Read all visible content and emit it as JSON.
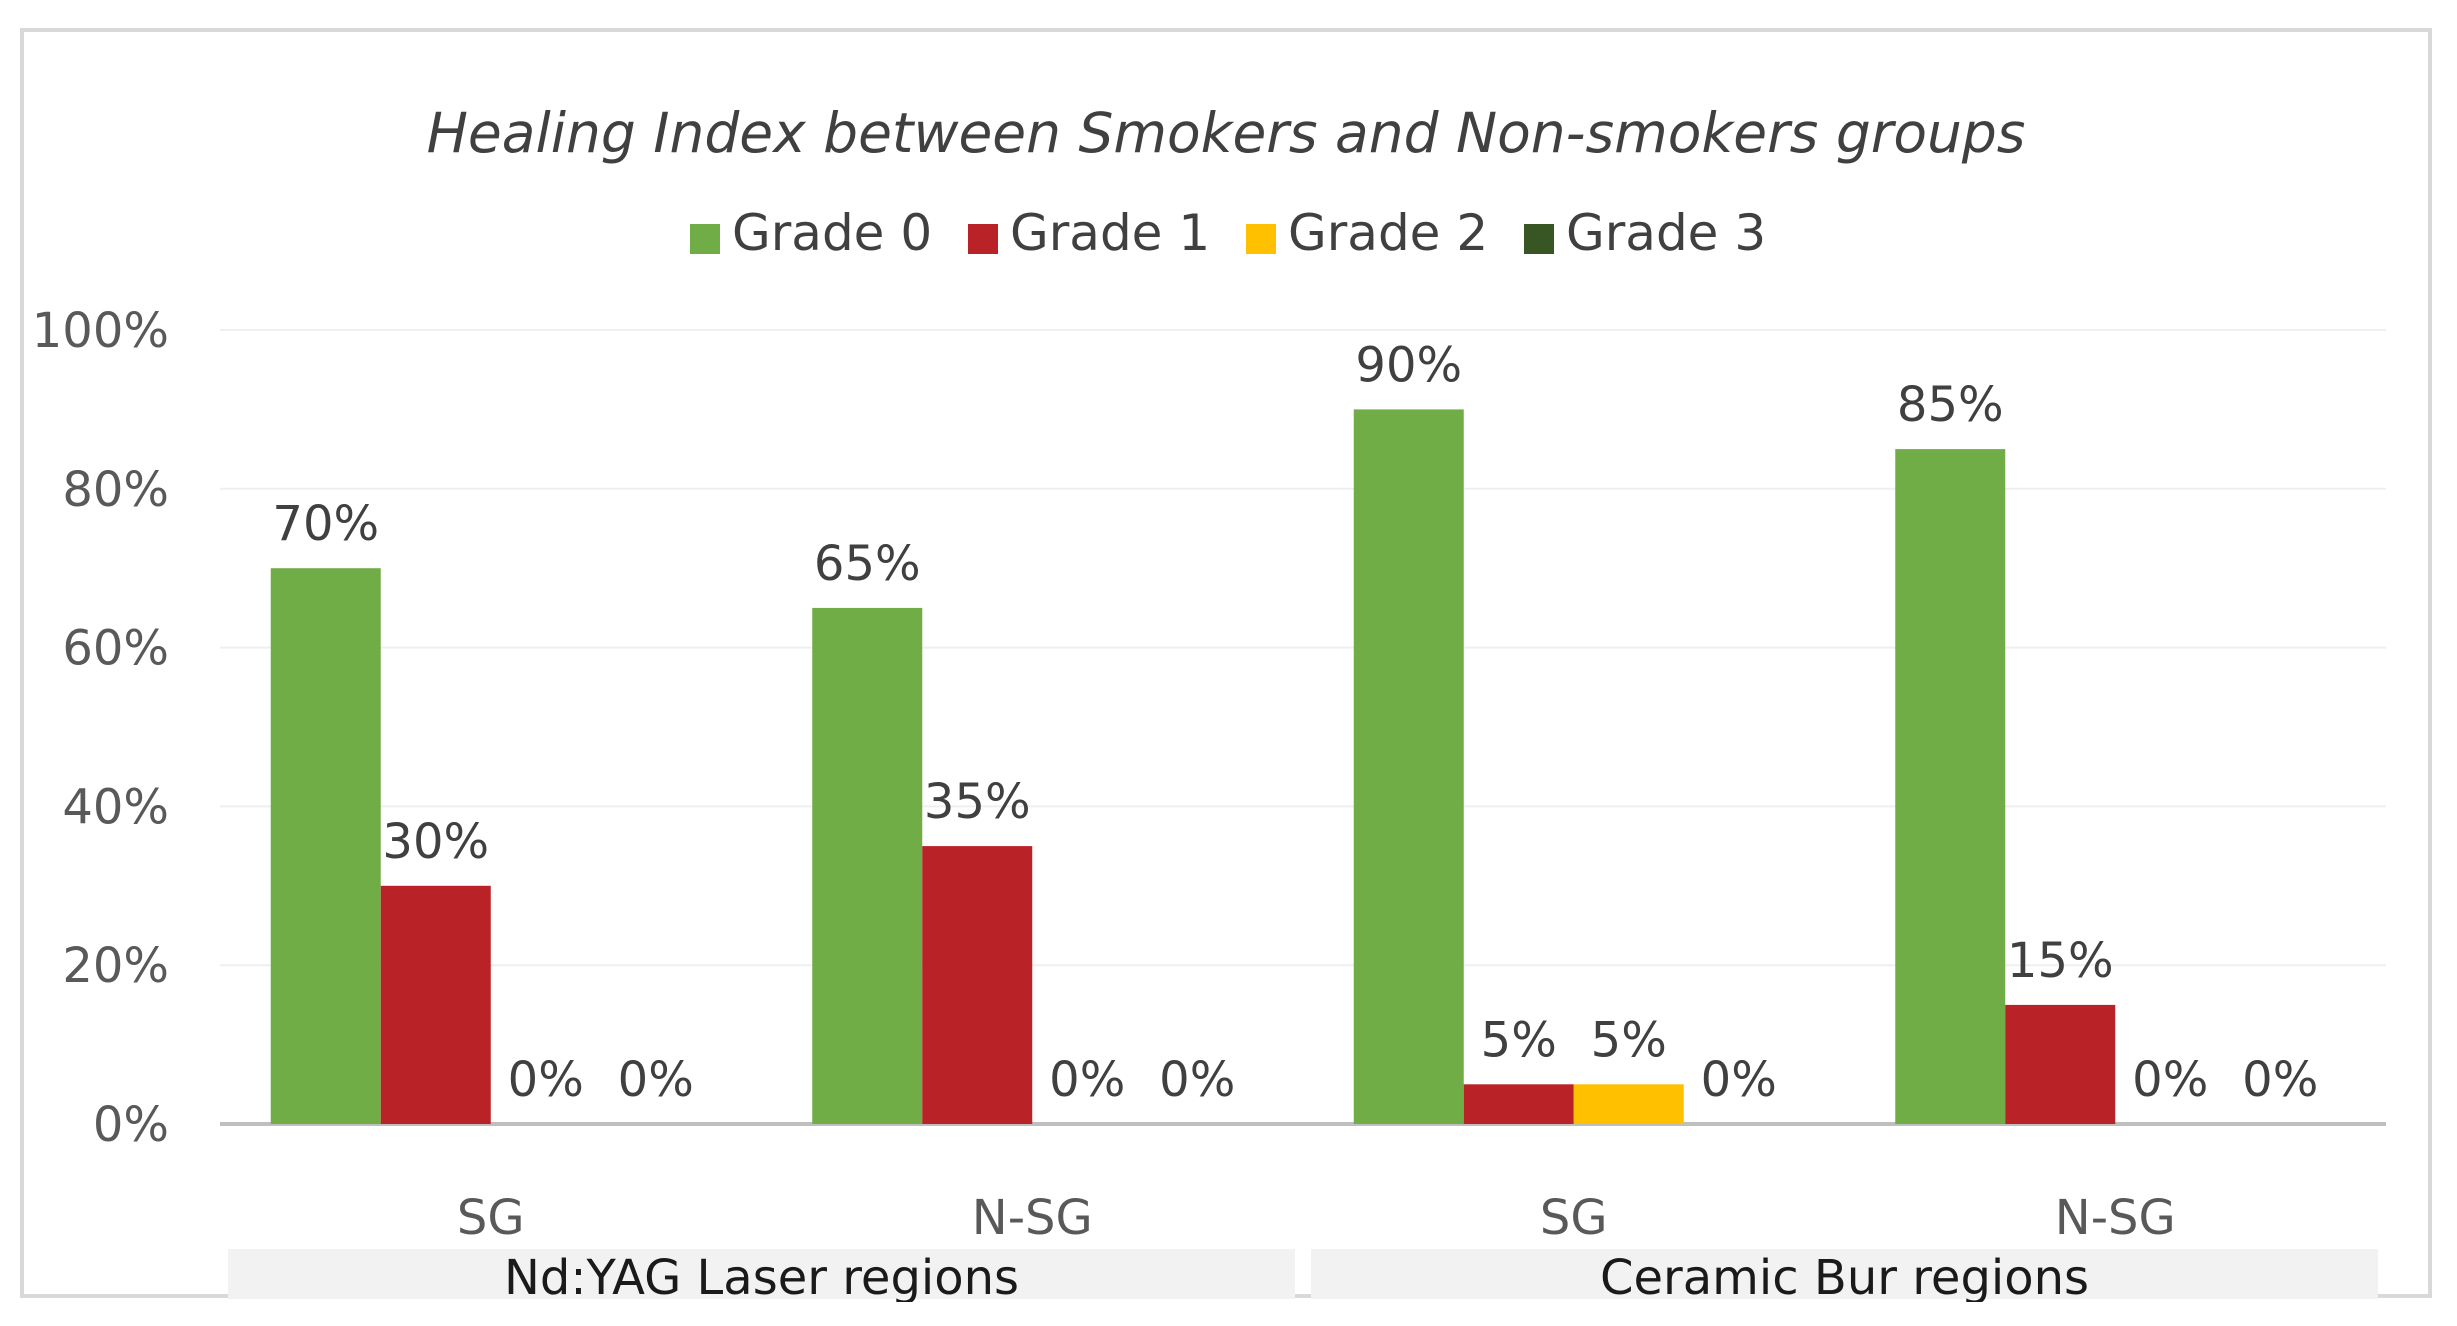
{
  "chart_data": {
    "type": "bar",
    "title": "Healing Index between Smokers and Non-smokers  groups",
    "categories": [
      "SG",
      "N-SG",
      "SG",
      "N-SG"
    ],
    "groups": [
      {
        "label": "Nd:YAG Laser regions",
        "categories": [
          "SG",
          "N-SG"
        ]
      },
      {
        "label": "Ceramic Bur regions",
        "categories": [
          "SG",
          "N-SG"
        ]
      }
    ],
    "series": [
      {
        "name": "Grade 0",
        "color": "#70ad47",
        "values": [
          70,
          65,
          90,
          85
        ],
        "labels": [
          "70%",
          "65%",
          "90%",
          "85%"
        ]
      },
      {
        "name": "Grade 1",
        "color": "#b92226",
        "values": [
          30,
          35,
          5,
          15
        ],
        "labels": [
          "30%",
          "35%",
          "5%",
          "15%"
        ]
      },
      {
        "name": "Grade 2",
        "color": "#ffc000",
        "values": [
          0,
          0,
          5,
          0
        ],
        "labels": [
          "0%",
          "0%",
          "5%",
          "0%"
        ]
      },
      {
        "name": "Grade 3",
        "color": "#375623",
        "values": [
          0,
          0,
          0,
          0
        ],
        "labels": [
          "0%",
          "0%",
          "0%",
          "0%"
        ]
      }
    ],
    "ylim": [
      0,
      100
    ],
    "yticks": [
      "0%",
      "20%",
      "40%",
      "60%",
      "80%",
      "100%"
    ],
    "grid": true,
    "legend_position": "top"
  }
}
